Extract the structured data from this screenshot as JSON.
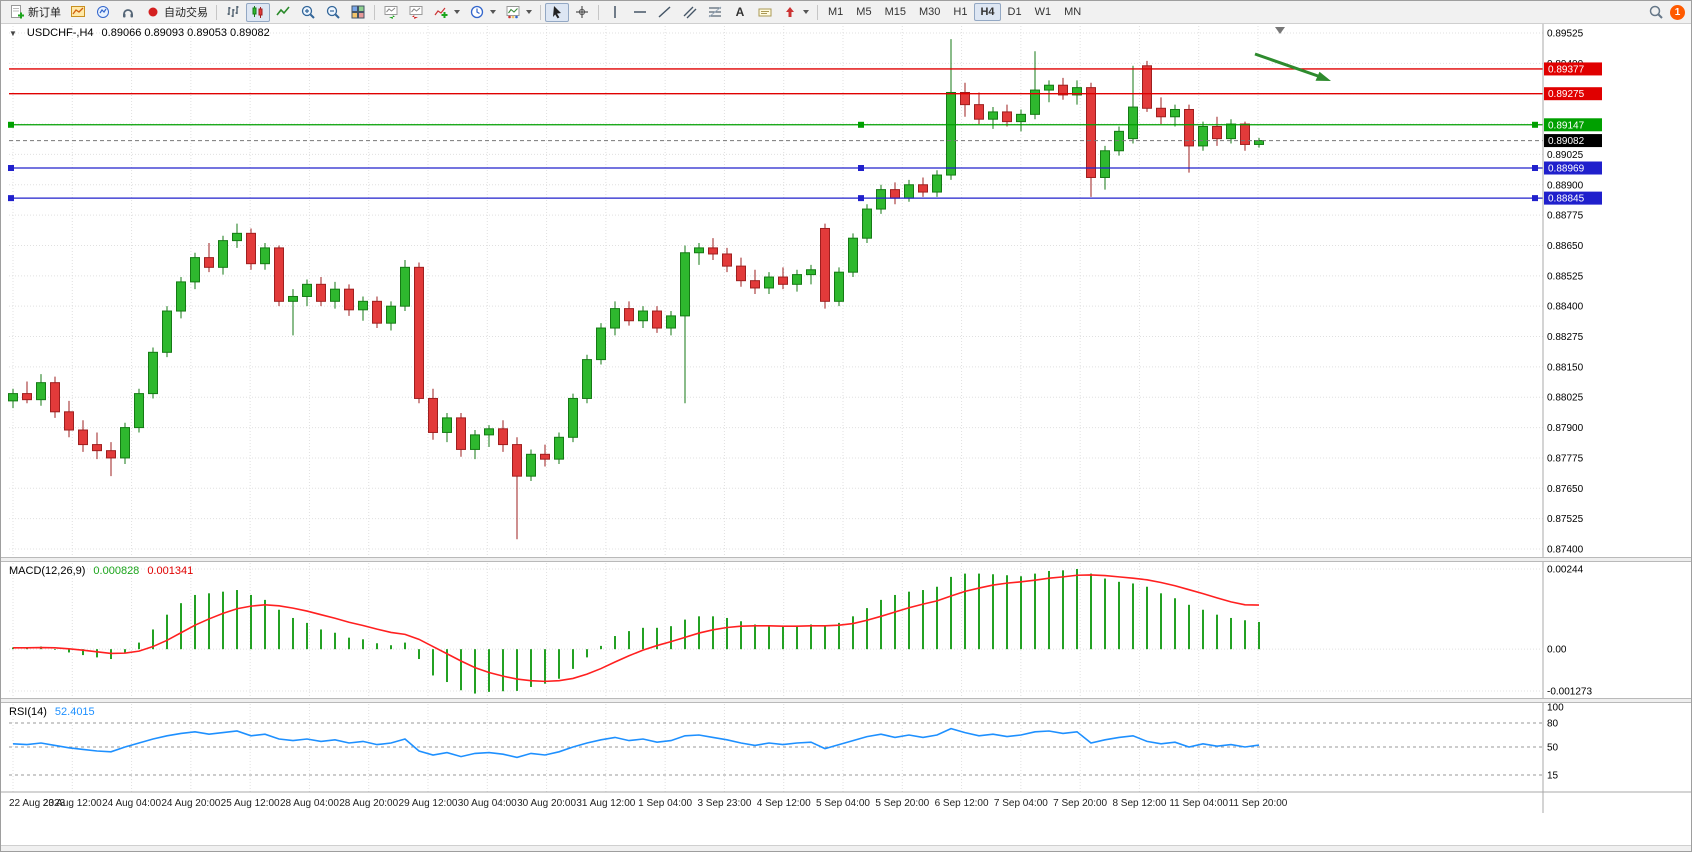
{
  "toolbar": {
    "new_order_label": "新订单",
    "autotrade_label": "自动交易",
    "timeframes": [
      "M1",
      "M5",
      "M15",
      "M30",
      "H1",
      "H4",
      "D1",
      "W1",
      "MN"
    ],
    "active_timeframe": "H4",
    "notification_count": "1"
  },
  "chart": {
    "header": {
      "collapse": "▼",
      "title": "USDCHF-,H4",
      "ohlc": "0.89066 0.89093 0.89053 0.89082"
    }
  },
  "macd": {
    "title": "MACD(12,26,9)",
    "main_value": "0.000828",
    "signal_value": "0.001341"
  },
  "rsi": {
    "title": "RSI(14)",
    "value": "52.4015"
  },
  "chart_data": {
    "type": "candlestick+indicators",
    "symbol": "USDCHF",
    "timeframe": "H4",
    "palette": {
      "bull": "#2EB82E",
      "bull_edge": "#157a15",
      "bear": "#E23A3A",
      "bear_edge": "#9e1f1f",
      "grid": "#e0e0e0",
      "macd_hist": "#23A123",
      "macd_signal": "#FF2020",
      "rsi": "#1E90FF"
    },
    "price_axis_values": [
      0.89525,
      0.894,
      0.89275,
      0.8915,
      0.89025,
      0.889,
      0.88775,
      0.8865,
      0.88525,
      0.884,
      0.88275,
      0.8815,
      0.88025,
      0.879,
      0.87775,
      0.8765,
      0.87525,
      0.874
    ],
    "time_labels": [
      "22 Aug 2023",
      "23 Aug 12:00",
      "24 Aug 04:00",
      "24 Aug 20:00",
      "25 Aug 12:00",
      "28 Aug 04:00",
      "28 Aug 20:00",
      "29 Aug 12:00",
      "30 Aug 04:00",
      "30 Aug 20:00",
      "31 Aug 12:00",
      "1 Sep 04:00",
      "3 Sep 23:00",
      "4 Sep 12:00",
      "5 Sep 04:00",
      "5 Sep 20:00",
      "6 Sep 12:00",
      "7 Sep 04:00",
      "7 Sep 20:00",
      "8 Sep 12:00",
      "11 Sep 04:00",
      "11 Sep 20:00"
    ],
    "current_price": 0.89082,
    "horizontal_lines": [
      {
        "price": 0.89377,
        "color": "#E00000",
        "handles": false
      },
      {
        "price": 0.89275,
        "color": "#E00000",
        "handles": false
      },
      {
        "price": 0.89147,
        "color": "#00A000",
        "handles": true
      },
      {
        "price": 0.88969,
        "color": "#2020CC",
        "handles": true
      },
      {
        "price": 0.88845,
        "color": "#2020CC",
        "handles": true
      }
    ],
    "annotation_arrow": {
      "color": "#2E8B2E",
      "note": "green down-right arrow pointing at upper resistance zone"
    },
    "candles_ohlc": [
      [
        0.8801,
        0.8806,
        0.8798,
        0.8804
      ],
      [
        0.8804,
        0.8809,
        0.88,
        0.88015
      ],
      [
        0.88015,
        0.8812,
        0.8799,
        0.88085
      ],
      [
        0.88085,
        0.8811,
        0.8794,
        0.87965
      ],
      [
        0.87965,
        0.8801,
        0.8786,
        0.8789
      ],
      [
        0.8789,
        0.8793,
        0.878,
        0.8783
      ],
      [
        0.8783,
        0.8788,
        0.8777,
        0.87805
      ],
      [
        0.87805,
        0.8784,
        0.877,
        0.87775
      ],
      [
        0.87775,
        0.8792,
        0.8775,
        0.879
      ],
      [
        0.879,
        0.8806,
        0.8788,
        0.8804
      ],
      [
        0.8804,
        0.8823,
        0.8802,
        0.8821
      ],
      [
        0.8821,
        0.884,
        0.8819,
        0.8838
      ],
      [
        0.8838,
        0.8852,
        0.8835,
        0.885
      ],
      [
        0.885,
        0.8862,
        0.8847,
        0.886
      ],
      [
        0.886,
        0.8866,
        0.8854,
        0.8856
      ],
      [
        0.8856,
        0.8869,
        0.8853,
        0.8867
      ],
      [
        0.8867,
        0.8874,
        0.8864,
        0.887
      ],
      [
        0.887,
        0.8872,
        0.8855,
        0.88575
      ],
      [
        0.88575,
        0.8866,
        0.8855,
        0.8864
      ],
      [
        0.8864,
        0.8865,
        0.884,
        0.8842
      ],
      [
        0.8842,
        0.8847,
        0.8828,
        0.8844
      ],
      [
        0.8844,
        0.8851,
        0.884,
        0.8849
      ],
      [
        0.8849,
        0.8852,
        0.884,
        0.8842
      ],
      [
        0.8842,
        0.885,
        0.8839,
        0.8847
      ],
      [
        0.8847,
        0.8849,
        0.8836,
        0.88385
      ],
      [
        0.88385,
        0.8844,
        0.8834,
        0.8842
      ],
      [
        0.8842,
        0.8844,
        0.8831,
        0.8833
      ],
      [
        0.8833,
        0.8842,
        0.883,
        0.884
      ],
      [
        0.884,
        0.8859,
        0.8838,
        0.8856
      ],
      [
        0.8856,
        0.8858,
        0.88,
        0.8802
      ],
      [
        0.8802,
        0.8806,
        0.8785,
        0.8788
      ],
      [
        0.8788,
        0.8796,
        0.8784,
        0.8794
      ],
      [
        0.8794,
        0.8796,
        0.8778,
        0.8781
      ],
      [
        0.8781,
        0.8789,
        0.8777,
        0.8787
      ],
      [
        0.8787,
        0.8791,
        0.8782,
        0.87895
      ],
      [
        0.87895,
        0.8793,
        0.878,
        0.8783
      ],
      [
        0.8783,
        0.8786,
        0.8744,
        0.877
      ],
      [
        0.877,
        0.8781,
        0.8768,
        0.8779
      ],
      [
        0.8779,
        0.8783,
        0.8774,
        0.8777
      ],
      [
        0.8777,
        0.8788,
        0.8775,
        0.8786
      ],
      [
        0.8786,
        0.8804,
        0.8784,
        0.8802
      ],
      [
        0.8802,
        0.882,
        0.88,
        0.8818
      ],
      [
        0.8818,
        0.8833,
        0.8816,
        0.8831
      ],
      [
        0.8831,
        0.8842,
        0.8828,
        0.8839
      ],
      [
        0.8839,
        0.8842,
        0.8832,
        0.8834
      ],
      [
        0.8834,
        0.884,
        0.8831,
        0.8838
      ],
      [
        0.8838,
        0.884,
        0.8829,
        0.8831
      ],
      [
        0.8831,
        0.8838,
        0.8828,
        0.8836
      ],
      [
        0.8836,
        0.8865,
        0.88,
        0.8862
      ],
      [
        0.8862,
        0.8866,
        0.8857,
        0.8864
      ],
      [
        0.8864,
        0.8868,
        0.8859,
        0.88615
      ],
      [
        0.88615,
        0.8864,
        0.8854,
        0.88565
      ],
      [
        0.88565,
        0.886,
        0.8848,
        0.88505
      ],
      [
        0.88505,
        0.8855,
        0.8845,
        0.88475
      ],
      [
        0.88475,
        0.8854,
        0.8845,
        0.8852
      ],
      [
        0.8852,
        0.8856,
        0.8847,
        0.8849
      ],
      [
        0.8849,
        0.8855,
        0.8846,
        0.8853
      ],
      [
        0.8853,
        0.8857,
        0.8849,
        0.8855
      ],
      [
        0.8872,
        0.8874,
        0.8839,
        0.8842
      ],
      [
        0.8842,
        0.8856,
        0.884,
        0.8854
      ],
      [
        0.8854,
        0.887,
        0.8852,
        0.8868
      ],
      [
        0.8868,
        0.8882,
        0.8866,
        0.888
      ],
      [
        0.888,
        0.889,
        0.8878,
        0.8888
      ],
      [
        0.8888,
        0.8891,
        0.8882,
        0.88845
      ],
      [
        0.88845,
        0.8892,
        0.8883,
        0.889
      ],
      [
        0.889,
        0.8893,
        0.8885,
        0.8887
      ],
      [
        0.8887,
        0.8896,
        0.8885,
        0.8894
      ],
      [
        0.8894,
        0.895,
        0.8892,
        0.8928
      ],
      [
        0.8928,
        0.8932,
        0.8918,
        0.8923
      ],
      [
        0.8923,
        0.8928,
        0.8915,
        0.8917
      ],
      [
        0.8917,
        0.8922,
        0.8913,
        0.892
      ],
      [
        0.892,
        0.8923,
        0.8914,
        0.8916
      ],
      [
        0.8916,
        0.8921,
        0.8912,
        0.8919
      ],
      [
        0.8919,
        0.8945,
        0.8917,
        0.8929
      ],
      [
        0.8929,
        0.8933,
        0.8924,
        0.8931
      ],
      [
        0.8931,
        0.8934,
        0.8925,
        0.8927
      ],
      [
        0.8927,
        0.8933,
        0.8923,
        0.893
      ],
      [
        0.893,
        0.8932,
        0.8885,
        0.8893
      ],
      [
        0.8893,
        0.8906,
        0.8888,
        0.8904
      ],
      [
        0.8904,
        0.8914,
        0.8902,
        0.8912
      ],
      [
        0.8909,
        0.8939,
        0.8907,
        0.8922
      ],
      [
        0.8939,
        0.8941,
        0.892,
        0.89215
      ],
      [
        0.89215,
        0.8926,
        0.8915,
        0.8918
      ],
      [
        0.8918,
        0.8923,
        0.8914,
        0.8921
      ],
      [
        0.8921,
        0.8923,
        0.8895,
        0.8906
      ],
      [
        0.8906,
        0.8916,
        0.8904,
        0.8914
      ],
      [
        0.8914,
        0.8918,
        0.8906,
        0.8909
      ],
      [
        0.8909,
        0.8917,
        0.8907,
        0.8915
      ],
      [
        0.8915,
        0.8916,
        0.8904,
        0.89066
      ],
      [
        0.89066,
        0.89093,
        0.89053,
        0.89082
      ]
    ],
    "macd": {
      "params": "12,26,9",
      "axis_values": [
        0.00244,
        0,
        -0.001273
      ],
      "axis_labels": [
        "0.00244",
        "0.00",
        "-0.001273"
      ],
      "histogram": [
        5e-05,
        2e-05,
        8e-05,
        -2e-05,
        -0.0001,
        -0.00018,
        -0.00025,
        -0.0003,
        -0.0001,
        0.0002,
        0.0006,
        0.00105,
        0.0014,
        0.00165,
        0.0017,
        0.00175,
        0.0018,
        0.00165,
        0.0015,
        0.0012,
        0.00095,
        0.0008,
        0.0006,
        0.0005,
        0.00035,
        0.0003,
        0.00018,
        0.00012,
        0.0002,
        -0.0003,
        -0.0008,
        -0.001,
        -0.00125,
        -0.00135,
        -0.0013,
        -0.00128,
        -0.00127,
        -0.00115,
        -0.00105,
        -0.0009,
        -0.0006,
        -0.00025,
        0.0001,
        0.0004,
        0.00055,
        0.00065,
        0.00065,
        0.0007,
        0.0009,
        0.001,
        0.001,
        0.00095,
        0.00085,
        0.00075,
        0.0007,
        0.00068,
        0.0007,
        0.00075,
        0.0007,
        0.0008,
        0.001,
        0.00125,
        0.0015,
        0.00165,
        0.00175,
        0.0018,
        0.0019,
        0.0022,
        0.0023,
        0.0023,
        0.00228,
        0.00225,
        0.00222,
        0.0023,
        0.00238,
        0.0024,
        0.00244,
        0.0023,
        0.00215,
        0.00205,
        0.002,
        0.0019,
        0.0017,
        0.00155,
        0.00135,
        0.0012,
        0.00105,
        0.00095,
        0.00088,
        0.000828
      ],
      "signal": [
        4e-05,
        4e-05,
        5e-05,
        4e-05,
        1e-05,
        -3e-05,
        -8e-05,
        -0.00013,
        -0.00012,
        -6e-05,
        8e-05,
        0.00027,
        0.0005,
        0.00073,
        0.00092,
        0.00109,
        0.00123,
        0.00131,
        0.00135,
        0.00132,
        0.00125,
        0.00116,
        0.00105,
        0.00094,
        0.00082,
        0.00072,
        0.00061,
        0.00051,
        0.00045,
        0.0003,
        8e-05,
        -0.00014,
        -0.00036,
        -0.00056,
        -0.00071,
        -0.00082,
        -0.00091,
        -0.00096,
        -0.00098,
        -0.00096,
        -0.00089,
        -0.00076,
        -0.00059,
        -0.00039,
        -0.0002,
        -3e-05,
        0.00011,
        0.00023,
        0.00036,
        0.00049,
        0.00059,
        0.00066,
        0.0007,
        0.00071,
        0.00071,
        0.0007,
        0.0007,
        0.00071,
        0.00071,
        0.00073,
        0.00078,
        0.00088,
        0.001,
        0.00113,
        0.00126,
        0.00137,
        0.00147,
        0.00162,
        0.00176,
        0.00186,
        0.00195,
        0.00201,
        0.00205,
        0.0021,
        0.00216,
        0.0022,
        0.00225,
        0.00226,
        0.00224,
        0.0022,
        0.00216,
        0.00211,
        0.00203,
        0.00193,
        0.00181,
        0.00169,
        0.00156,
        0.00144,
        0.00135,
        0.001341
      ]
    },
    "rsi": {
      "period": 14,
      "current": 52.4015,
      "axis_values": [
        100,
        80,
        50,
        15
      ],
      "levels": [
        80,
        50,
        15
      ],
      "values": [
        54,
        53,
        55,
        52,
        49,
        47,
        45,
        44,
        50,
        55,
        60,
        64,
        67,
        69,
        66,
        68,
        70,
        64,
        66,
        60,
        58,
        60,
        57,
        59,
        55,
        57,
        53,
        55,
        60,
        45,
        40,
        43,
        38,
        42,
        43,
        41,
        37,
        42,
        40,
        44,
        50,
        55,
        59,
        62,
        58,
        60,
        56,
        58,
        64,
        65,
        62,
        59,
        55,
        52,
        55,
        53,
        55,
        56,
        48,
        53,
        58,
        63,
        66,
        62,
        65,
        62,
        65,
        73,
        68,
        64,
        66,
        63,
        65,
        69,
        70,
        67,
        69,
        55,
        59,
        62,
        64,
        57,
        54,
        56,
        50,
        54,
        51,
        53,
        50,
        52.4
      ]
    }
  }
}
